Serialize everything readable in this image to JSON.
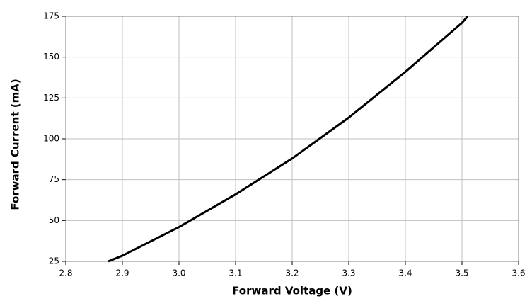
{
  "chart_data": {
    "type": "line",
    "x_label": "Forward Voltage (V)",
    "y_label": "Forward Current (mA)",
    "x": [
      2.875,
      2.9,
      3.0,
      3.1,
      3.2,
      3.3,
      3.4,
      3.5,
      3.51
    ],
    "series": [
      {
        "color": "#000000",
        "values": [
          25,
          28.5,
          46,
          66,
          88,
          113,
          141,
          171,
          175
        ]
      }
    ],
    "xlim": [
      2.8,
      3.6
    ],
    "xticks": [
      2.8,
      2.9,
      {
        "value": 3,
        "label": "3.0"
      },
      3.1,
      3.2,
      3.3,
      3.4,
      3.5,
      3.6
    ],
    "ylim": [
      25,
      175
    ],
    "yticks": [
      25,
      50,
      75,
      100,
      125,
      150,
      175
    ],
    "grid": true
  }
}
